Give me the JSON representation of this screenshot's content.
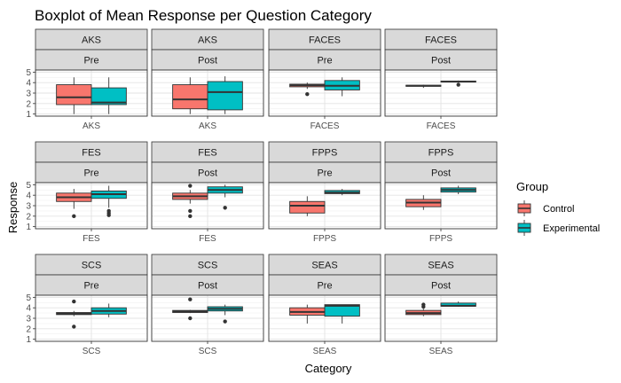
{
  "chart_data": {
    "type": "boxplot",
    "title": "Boxplot of Mean Response per Question Category",
    "xlabel": "Category",
    "ylabel": "Response",
    "ylim": [
      1,
      5
    ],
    "yticks": [
      1,
      2,
      3,
      4,
      5
    ],
    "grid": true,
    "legend": {
      "title": "Group",
      "placement": "right",
      "entries": [
        {
          "name": "Control",
          "color": "#F8766D"
        },
        {
          "name": "Experimental",
          "color": "#00BFC4"
        }
      ]
    },
    "facets": [
      {
        "strip_top": "AKS",
        "strip_bottom": "Pre",
        "x_label": "AKS",
        "boxes": [
          {
            "group": "Control",
            "q1": 1.9,
            "median": 2.6,
            "q3": 3.8,
            "whisker_low": 1.0,
            "whisker_high": 4.5,
            "outliers": []
          },
          {
            "group": "Experimental",
            "q1": 1.9,
            "median": 2.1,
            "q3": 3.5,
            "whisker_low": 1.0,
            "whisker_high": 4.5,
            "outliers": []
          }
        ]
      },
      {
        "strip_top": "AKS",
        "strip_bottom": "Post",
        "x_label": "AKS",
        "boxes": [
          {
            "group": "Control",
            "q1": 1.5,
            "median": 2.4,
            "q3": 3.8,
            "whisker_low": 1.0,
            "whisker_high": 4.5,
            "outliers": []
          },
          {
            "group": "Experimental",
            "q1": 1.4,
            "median": 3.1,
            "q3": 4.1,
            "whisker_low": 1.0,
            "whisker_high": 4.6,
            "outliers": []
          }
        ]
      },
      {
        "strip_top": "FACES",
        "strip_bottom": "Pre",
        "x_label": "FACES",
        "boxes": [
          {
            "group": "Control",
            "q1": 3.6,
            "median": 3.75,
            "q3": 3.85,
            "whisker_low": 3.4,
            "whisker_high": 4.0,
            "outliers": [
              2.9
            ]
          },
          {
            "group": "Experimental",
            "q1": 3.3,
            "median": 3.7,
            "q3": 4.2,
            "whisker_low": 2.7,
            "whisker_high": 4.5,
            "outliers": []
          }
        ]
      },
      {
        "strip_top": "FACES",
        "strip_bottom": "Post",
        "x_label": "FACES",
        "boxes": [
          {
            "group": "Control",
            "q1": 3.65,
            "median": 3.7,
            "q3": 3.75,
            "whisker_low": 3.5,
            "whisker_high": 3.8,
            "outliers": []
          },
          {
            "group": "Experimental",
            "q1": 4.05,
            "median": 4.1,
            "q3": 4.15,
            "whisker_low": 4.0,
            "whisker_high": 4.2,
            "outliers": [
              3.8
            ]
          }
        ]
      },
      {
        "strip_top": "FES",
        "strip_bottom": "Pre",
        "x_label": "FES",
        "boxes": [
          {
            "group": "Control",
            "q1": 3.4,
            "median": 3.8,
            "q3": 4.2,
            "whisker_low": 2.7,
            "whisker_high": 4.6,
            "outliers": [
              2.0
            ]
          },
          {
            "group": "Experimental",
            "q1": 3.7,
            "median": 4.1,
            "q3": 4.4,
            "whisker_low": 2.8,
            "whisker_high": 4.9,
            "outliers": [
              2.5,
              2.3,
              2.1
            ]
          }
        ]
      },
      {
        "strip_top": "FES",
        "strip_bottom": "Post",
        "x_label": "FES",
        "boxes": [
          {
            "group": "Control",
            "q1": 3.6,
            "median": 3.9,
            "q3": 4.2,
            "whisker_low": 3.2,
            "whisker_high": 4.5,
            "outliers": [
              4.9,
              2.5,
              2.0
            ]
          },
          {
            "group": "Experimental",
            "q1": 4.2,
            "median": 4.5,
            "q3": 4.8,
            "whisker_low": 3.8,
            "whisker_high": 5.0,
            "outliers": [
              2.8
            ]
          }
        ]
      },
      {
        "strip_top": "FPPS",
        "strip_bottom": "Pre",
        "x_label": "FPPS",
        "boxes": [
          {
            "group": "Control",
            "q1": 2.3,
            "median": 3.0,
            "q3": 3.4,
            "whisker_low": 2.0,
            "whisker_high": 3.9,
            "outliers": []
          },
          {
            "group": "Experimental",
            "q1": 4.15,
            "median": 4.25,
            "q3": 4.45,
            "whisker_low": 4.0,
            "whisker_high": 4.6,
            "outliers": []
          }
        ]
      },
      {
        "strip_top": "FPPS",
        "strip_bottom": "Post",
        "x_label": "FPPS",
        "boxes": [
          {
            "group": "Control",
            "q1": 2.9,
            "median": 3.3,
            "q3": 3.6,
            "whisker_low": 2.6,
            "whisker_high": 4.0,
            "outliers": []
          },
          {
            "group": "Experimental",
            "q1": 4.3,
            "median": 4.5,
            "q3": 4.7,
            "whisker_low": 4.1,
            "whisker_high": 4.9,
            "outliers": []
          }
        ]
      },
      {
        "strip_top": "SCS",
        "strip_bottom": "Pre",
        "x_label": "SCS",
        "boxes": [
          {
            "group": "Control",
            "q1": 3.35,
            "median": 3.45,
            "q3": 3.55,
            "whisker_low": 3.2,
            "whisker_high": 3.7,
            "outliers": [
              4.6,
              2.2
            ]
          },
          {
            "group": "Experimental",
            "q1": 3.4,
            "median": 3.7,
            "q3": 4.0,
            "whisker_low": 3.1,
            "whisker_high": 4.4,
            "outliers": []
          }
        ]
      },
      {
        "strip_top": "SCS",
        "strip_bottom": "Post",
        "x_label": "SCS",
        "boxes": [
          {
            "group": "Control",
            "q1": 3.55,
            "median": 3.65,
            "q3": 3.75,
            "whisker_low": 3.5,
            "whisker_high": 3.8,
            "outliers": [
              4.8,
              3.0
            ]
          },
          {
            "group": "Experimental",
            "q1": 3.7,
            "median": 3.9,
            "q3": 4.1,
            "whisker_low": 3.3,
            "whisker_high": 4.3,
            "outliers": [
              2.7
            ]
          }
        ]
      },
      {
        "strip_top": "SEAS",
        "strip_bottom": "Pre",
        "x_label": "SEAS",
        "boxes": [
          {
            "group": "Control",
            "q1": 3.3,
            "median": 3.6,
            "q3": 4.0,
            "whisker_low": 2.5,
            "whisker_high": 4.3,
            "outliers": []
          },
          {
            "group": "Experimental",
            "q1": 3.2,
            "median": 4.2,
            "q3": 4.3,
            "whisker_low": 2.5,
            "whisker_high": 4.3,
            "outliers": []
          }
        ]
      },
      {
        "strip_top": "SEAS",
        "strip_bottom": "Post",
        "x_label": "SEAS",
        "boxes": [
          {
            "group": "Control",
            "q1": 3.35,
            "median": 3.5,
            "q3": 3.75,
            "whisker_low": 3.2,
            "whisker_high": 3.9,
            "outliers": [
              4.3,
              4.1
            ]
          },
          {
            "group": "Experimental",
            "q1": 4.15,
            "median": 4.2,
            "q3": 4.45,
            "whisker_low": 4.1,
            "whisker_high": 4.6,
            "outliers": []
          }
        ]
      }
    ]
  }
}
